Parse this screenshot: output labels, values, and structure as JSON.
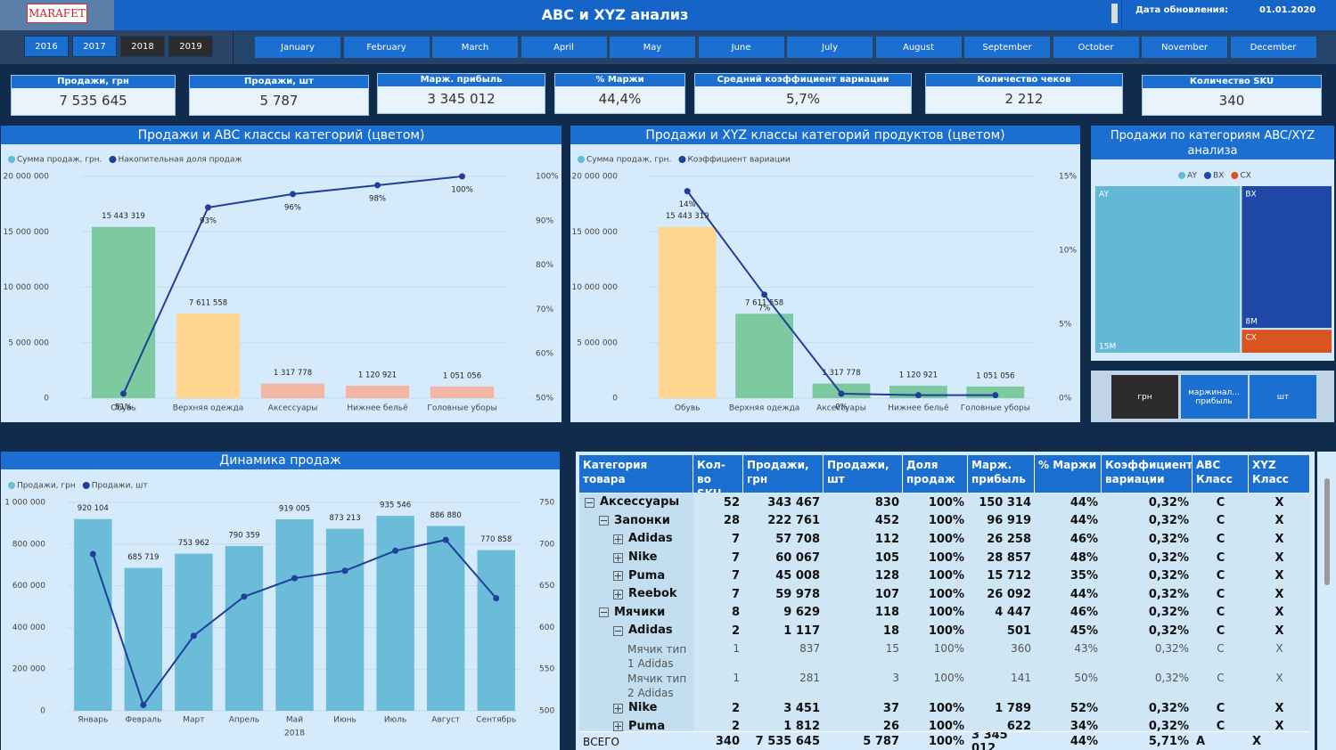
{
  "header": {
    "logo": "MARAFET",
    "title": "ABC и XYZ анализ",
    "update_label": "Дата обновления:",
    "update_date": "01.01.2020"
  },
  "years": [
    {
      "label": "2016"
    },
    {
      "label": "2017"
    },
    {
      "label": "2018",
      "selected": true
    },
    {
      "label": "2019",
      "selected": true
    }
  ],
  "months": [
    "January",
    "February",
    "March",
    "April",
    "May",
    "June",
    "July",
    "August",
    "September",
    "October",
    "November",
    "December"
  ],
  "kpis": [
    {
      "label": "Продажи, грн",
      "value": "7 535 645"
    },
    {
      "label": "Продажи, шт",
      "value": "5 787"
    },
    {
      "label": "Марж. прибыль",
      "value": "3 345 012"
    },
    {
      "label": "% Маржи",
      "value": "44,4%"
    },
    {
      "label": "Средний коэффициент вариации",
      "value": "5,7%"
    },
    {
      "label": "Количество чеков",
      "value": "2 212"
    },
    {
      "label": "Количество SKU",
      "value": "340"
    }
  ],
  "units": [
    {
      "label": "грн",
      "selected": true
    },
    {
      "label": "маржинал... прибыль"
    },
    {
      "label": "шт"
    }
  ],
  "table": {
    "columns": [
      "Категория товара",
      "Кол-во SKU",
      "Продажи, грн",
      "Продажи, шт",
      "Доля продаж",
      "Марж. прибыль",
      "% Маржи",
      "Коэффициент вариации",
      "ABC Класс",
      "XYZ Класс"
    ],
    "rows": [
      {
        "level": 0,
        "expanded": true,
        "cells": [
          "Аксессуары",
          "52",
          "343 467",
          "830",
          "100%",
          "150 314",
          "44%",
          "0,32%",
          "C",
          "X"
        ]
      },
      {
        "level": 1,
        "expanded": true,
        "cells": [
          "Запонки",
          "28",
          "222 761",
          "452",
          "100%",
          "96 919",
          "44%",
          "0,32%",
          "C",
          "X"
        ]
      },
      {
        "level": 2,
        "expanded": false,
        "cells": [
          "Adidas",
          "7",
          "57 708",
          "112",
          "100%",
          "26 258",
          "46%",
          "0,32%",
          "C",
          "X"
        ]
      },
      {
        "level": 2,
        "expanded": false,
        "cells": [
          "Nike",
          "7",
          "60 067",
          "105",
          "100%",
          "28 857",
          "48%",
          "0,32%",
          "C",
          "X"
        ]
      },
      {
        "level": 2,
        "expanded": false,
        "cells": [
          "Puma",
          "7",
          "45 008",
          "128",
          "100%",
          "15 712",
          "35%",
          "0,32%",
          "C",
          "X"
        ]
      },
      {
        "level": 2,
        "expanded": false,
        "cells": [
          "Reebok",
          "7",
          "59 978",
          "107",
          "100%",
          "26 092",
          "44%",
          "0,32%",
          "C",
          "X"
        ]
      },
      {
        "level": 1,
        "expanded": true,
        "cells": [
          "Мячики",
          "8",
          "9 629",
          "118",
          "100%",
          "4 447",
          "46%",
          "0,32%",
          "C",
          "X"
        ]
      },
      {
        "level": 2,
        "expanded": true,
        "cells": [
          "Adidas",
          "2",
          "1 117",
          "18",
          "100%",
          "501",
          "45%",
          "0,32%",
          "C",
          "X"
        ]
      },
      {
        "level": 3,
        "expanded": null,
        "cells": [
          "Мячик тип 1 Adidas",
          "1",
          "837",
          "15",
          "100%",
          "360",
          "43%",
          "0,32%",
          "C",
          "X"
        ]
      },
      {
        "level": 3,
        "expanded": null,
        "cells": [
          "Мячик тип 2 Adidas",
          "1",
          "281",
          "3",
          "100%",
          "141",
          "50%",
          "0,32%",
          "C",
          "X"
        ]
      },
      {
        "level": 2,
        "expanded": false,
        "cells": [
          "Nike",
          "2",
          "3 451",
          "37",
          "100%",
          "1 789",
          "52%",
          "0,32%",
          "C",
          "X"
        ]
      },
      {
        "level": 2,
        "expanded": false,
        "cells": [
          "Puma",
          "2",
          "1 812",
          "26",
          "100%",
          "622",
          "34%",
          "0,32%",
          "C",
          "X"
        ]
      }
    ],
    "total": [
      "ВСЕГО",
      "340",
      "7 535 645",
      "5 787",
      "100%",
      "3 345 012",
      "44%",
      "5,71%",
      "A",
      "X"
    ]
  },
  "chart_data": [
    {
      "type": "bar_line",
      "title": "Продажи и ABC классы категорий (цветом)",
      "categories": [
        "Обувь",
        "Верхняя одежда",
        "Аксессуары",
        "Нижнее бельё",
        "Головные уборы"
      ],
      "series": [
        {
          "name": "Сумма продаж, грн.",
          "type": "bar",
          "color": "#5bbfd6",
          "colors": [
            "#7dc9a0",
            "#ffd690",
            "#f3b5a4",
            "#f3b5a4",
            "#f3b5a4"
          ],
          "values": [
            15443319,
            7611558,
            1317778,
            1120921,
            1051056
          ],
          "value_labels": [
            "15 443 319",
            "7 611 558",
            "1 317 778",
            "1 120 921",
            "1 051 056"
          ]
        },
        {
          "name": "Накопительная доля продаж",
          "type": "line",
          "axis": "y2",
          "color": "#1f3f99",
          "values": [
            51,
            93,
            96,
            98,
            100
          ],
          "value_labels": [
            "51%",
            "93%",
            "96%",
            "98%",
            "100%"
          ]
        }
      ],
      "ylim": [
        0,
        20000000
      ],
      "yticks": [
        0,
        {
          "value": 5000000,
          "label": "5 000 000"
        },
        {
          "value": 10000000,
          "label": "10 000 000"
        },
        {
          "value": 15000000,
          "label": "15 000 000"
        },
        {
          "value": 20000000,
          "label": "20 000 000"
        }
      ],
      "y2lim": [
        50,
        100
      ],
      "y2ticks": [
        {
          "value": 50,
          "label": "50%"
        },
        {
          "value": 60,
          "label": "60%"
        },
        {
          "value": 70,
          "label": "70%"
        },
        {
          "value": 80,
          "label": "80%"
        },
        {
          "value": 90,
          "label": "90%"
        },
        {
          "value": 100,
          "label": "100%"
        }
      ],
      "grid": true
    },
    {
      "type": "bar_line",
      "title": "Продажи и XYZ классы категорий продуктов (цветом)",
      "categories": [
        "Обувь",
        "Верхняя одежда",
        "Аксессуары",
        "Нижнее бельё",
        "Головные уборы"
      ],
      "series": [
        {
          "name": "Сумма продаж, грн.",
          "type": "bar",
          "color": "#5bbfd6",
          "colors": [
            "#ffd690",
            "#7dc9a0",
            "#7dc9a0",
            "#7dc9a0",
            "#7dc9a0"
          ],
          "values": [
            15443319,
            7611558,
            1317778,
            1120921,
            1051056
          ],
          "value_labels": [
            "15 443 319",
            "7 611 558",
            "1 317 778",
            "1 120 921",
            "1 051 056"
          ]
        },
        {
          "name": "Коэффициент вариации",
          "type": "line",
          "axis": "y2",
          "color": "#1f3f99",
          "values": [
            14,
            7,
            0.3,
            0.2,
            0.2
          ],
          "value_labels": [
            "14%",
            "7%",
            "0%",
            null,
            null
          ]
        }
      ],
      "ylim": [
        0,
        20000000
      ],
      "yticks": [
        0,
        {
          "value": 5000000,
          "label": "5 000 000"
        },
        {
          "value": 10000000,
          "label": "10 000 000"
        },
        {
          "value": 15000000,
          "label": "15 000 000"
        },
        {
          "value": 20000000,
          "label": "20 000 000"
        }
      ],
      "y2lim": [
        0,
        15
      ],
      "y2ticks": [
        {
          "value": 0,
          "label": "0%"
        },
        {
          "value": 5,
          "label": "5%"
        },
        {
          "value": 10,
          "label": "10%"
        },
        {
          "value": 15,
          "label": "15%"
        }
      ],
      "grid": true
    },
    {
      "type": "treemap",
      "title": "Продажи по категориям ABC/XYZ анализа",
      "categories": [
        "AY",
        "BX",
        "CX"
      ],
      "values": [
        15,
        8,
        1.3
      ],
      "value_labels": [
        "15M",
        "8M",
        null
      ],
      "colors": [
        "#63b8d6",
        "#1f48a6",
        "#d8551f"
      ]
    },
    {
      "type": "bar_line",
      "title": "Динамика продаж",
      "categories": [
        "Январь",
        "Февраль",
        "Март",
        "Апрель",
        "Май",
        "Июнь",
        "Июль",
        "Август",
        "Сентябрь"
      ],
      "x_label": "2018",
      "series": [
        {
          "name": "Продажи, грн",
          "type": "bar",
          "color": "#6bbcd8",
          "values": [
            920104,
            685719,
            753962,
            790359,
            919005,
            873213,
            935546,
            886880,
            770858
          ],
          "value_labels": [
            "920 104",
            "685 719",
            "753 962",
            "790 359",
            "919 005",
            "873 213",
            "935 546",
            "886 880",
            "770 858"
          ]
        },
        {
          "name": "Продажи, шт",
          "type": "line",
          "axis": "y2",
          "color": "#1f3f99",
          "values": [
            688,
            507,
            590,
            637,
            659,
            668,
            692,
            705,
            635
          ]
        }
      ],
      "ylim": [
        0,
        1000000
      ],
      "yticks": [
        0,
        {
          "value": 200000,
          "label": "200 000"
        },
        {
          "value": 400000,
          "label": "400 000"
        },
        {
          "value": 600000,
          "label": "600 000"
        },
        {
          "value": 800000,
          "label": "800 000"
        },
        {
          "value": 1000000,
          "label": "1 000 000"
        }
      ],
      "y2lim": [
        500,
        750
      ],
      "y2ticks": [
        500,
        550,
        600,
        650,
        700,
        750
      ],
      "grid": true
    }
  ]
}
